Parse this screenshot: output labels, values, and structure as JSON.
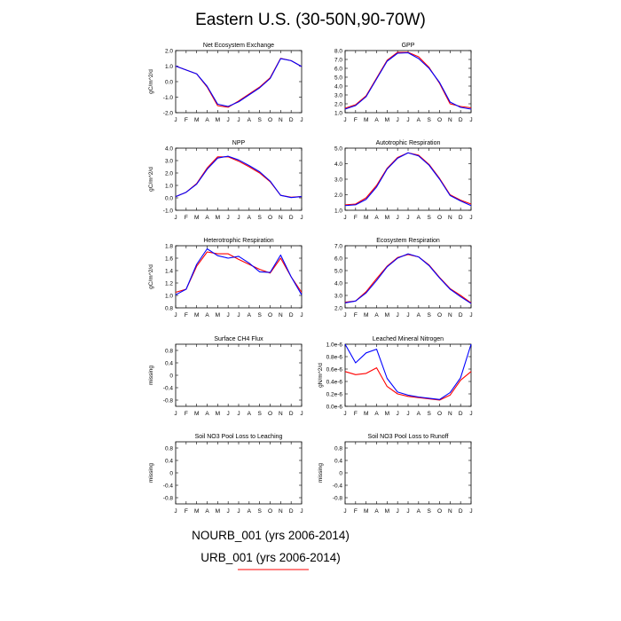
{
  "title": "Eastern U.S. (30-50N,90-70W)",
  "legend": [
    {
      "label": "NOURB_001 (yrs 2006-2014)",
      "color": "#0000ff"
    },
    {
      "label": "URB_001 (yrs 2006-2014)",
      "color": "#ff0000"
    }
  ],
  "chart_data": [
    {
      "type": "line",
      "title": "Net Ecosystem Exchange",
      "ylabel": "gC/m^2/d",
      "categories": [
        "J",
        "F",
        "M",
        "A",
        "M",
        "J",
        "J",
        "A",
        "S",
        "O",
        "N",
        "D",
        "J"
      ],
      "ylim": [
        -2.0,
        2.0
      ],
      "yticks": [
        "-2.0",
        "-1.0",
        "0.0",
        "1.0",
        "2.0"
      ],
      "ytick_values": [
        -2,
        -1,
        0,
        1,
        2
      ],
      "series": [
        {
          "color": "#0000ff",
          "values": [
            1.0,
            0.75,
            0.5,
            -0.3,
            -1.45,
            -1.6,
            -1.3,
            -0.85,
            -0.4,
            0.2,
            1.48,
            1.35,
            0.97
          ]
        },
        {
          "color": "#ff0000",
          "values": [
            1.0,
            0.75,
            0.5,
            -0.35,
            -1.55,
            -1.65,
            -1.25,
            -0.8,
            -0.35,
            0.25,
            1.5,
            1.35,
            0.97
          ]
        }
      ]
    },
    {
      "type": "line",
      "title": "GPP",
      "ylabel": "",
      "categories": [
        "J",
        "F",
        "M",
        "A",
        "M",
        "J",
        "J",
        "A",
        "S",
        "O",
        "N",
        "D",
        "J"
      ],
      "ylim": [
        1.0,
        8.0
      ],
      "yticks": [
        "1.0",
        "2.0",
        "3.0",
        "4.0",
        "5.0",
        "6.0",
        "7.0",
        "8.0"
      ],
      "ytick_values": [
        1,
        2,
        3,
        4,
        5,
        6,
        7,
        8
      ],
      "series": [
        {
          "color": "#0000ff",
          "values": [
            1.4,
            1.8,
            2.8,
            4.8,
            6.8,
            7.7,
            7.75,
            7.1,
            6.0,
            4.4,
            2.2,
            1.6,
            1.4
          ]
        },
        {
          "color": "#ff0000",
          "values": [
            1.5,
            1.9,
            2.9,
            4.9,
            6.9,
            7.8,
            7.8,
            7.3,
            6.1,
            4.3,
            2.0,
            1.7,
            1.55
          ]
        }
      ]
    },
    {
      "type": "line",
      "title": "NPP",
      "ylabel": "gC/m^2/d",
      "categories": [
        "J",
        "F",
        "M",
        "A",
        "M",
        "J",
        "J",
        "A",
        "S",
        "O",
        "N",
        "D",
        "J"
      ],
      "ylim": [
        -1.0,
        4.0
      ],
      "yticks": [
        "-1.0",
        "0.0",
        "1.0",
        "2.0",
        "3.0",
        "4.0"
      ],
      "ytick_values": [
        -1,
        0,
        1,
        2,
        3,
        4
      ],
      "series": [
        {
          "color": "#0000ff",
          "values": [
            0.1,
            0.45,
            1.1,
            2.3,
            3.2,
            3.35,
            3.05,
            2.6,
            2.1,
            1.35,
            0.2,
            0.02,
            0.1
          ]
        },
        {
          "color": "#ff0000",
          "values": [
            0.1,
            0.45,
            1.15,
            2.4,
            3.3,
            3.3,
            2.95,
            2.5,
            2.0,
            1.3,
            0.2,
            0.05,
            0.1
          ]
        }
      ]
    },
    {
      "type": "line",
      "title": "Autotrophic Respiration",
      "ylabel": "",
      "categories": [
        "J",
        "F",
        "M",
        "A",
        "M",
        "J",
        "J",
        "A",
        "S",
        "O",
        "N",
        "D",
        "J"
      ],
      "ylim": [
        1.0,
        5.0
      ],
      "yticks": [
        "1.0",
        "2.0",
        "3.0",
        "4.0",
        "5.0"
      ],
      "ytick_values": [
        1,
        2,
        3,
        4,
        5
      ],
      "series": [
        {
          "color": "#0000ff",
          "values": [
            1.3,
            1.35,
            1.7,
            2.5,
            3.65,
            4.35,
            4.7,
            4.5,
            3.9,
            3.0,
            1.95,
            1.6,
            1.3
          ]
        },
        {
          "color": "#ff0000",
          "values": [
            1.35,
            1.4,
            1.8,
            2.6,
            3.7,
            4.4,
            4.7,
            4.55,
            3.95,
            3.05,
            2.0,
            1.65,
            1.4
          ]
        }
      ]
    },
    {
      "type": "line",
      "title": "Heterotrophic Respiration",
      "ylabel": "gC/m^2/d",
      "categories": [
        "J",
        "F",
        "M",
        "A",
        "M",
        "J",
        "J",
        "A",
        "S",
        "O",
        "N",
        "D",
        "J"
      ],
      "ylim": [
        0.8,
        1.8
      ],
      "yticks": [
        "0.8",
        "1.0",
        "1.2",
        "1.4",
        "1.6",
        "1.8"
      ],
      "ytick_values": [
        0.8,
        1.0,
        1.2,
        1.4,
        1.6,
        1.8
      ],
      "series": [
        {
          "color": "#0000ff",
          "values": [
            1.01,
            1.1,
            1.5,
            1.75,
            1.64,
            1.6,
            1.63,
            1.52,
            1.38,
            1.37,
            1.65,
            1.3,
            1.01
          ]
        },
        {
          "color": "#ff0000",
          "values": [
            1.05,
            1.1,
            1.47,
            1.7,
            1.67,
            1.67,
            1.58,
            1.5,
            1.42,
            1.36,
            1.6,
            1.3,
            1.05
          ]
        }
      ]
    },
    {
      "type": "line",
      "title": "Ecosystem Respiration",
      "ylabel": "",
      "categories": [
        "J",
        "F",
        "M",
        "A",
        "M",
        "J",
        "J",
        "A",
        "S",
        "O",
        "N",
        "D",
        "J"
      ],
      "ylim": [
        2.0,
        7.0
      ],
      "yticks": [
        "2.0",
        "3.0",
        "4.0",
        "5.0",
        "6.0",
        "7.0"
      ],
      "ytick_values": [
        2,
        3,
        4,
        5,
        6,
        7
      ],
      "series": [
        {
          "color": "#0000ff",
          "values": [
            2.4,
            2.55,
            3.2,
            4.2,
            5.3,
            6.0,
            6.35,
            6.1,
            5.4,
            4.4,
            3.5,
            2.9,
            2.35
          ]
        },
        {
          "color": "#ff0000",
          "values": [
            2.45,
            2.55,
            3.3,
            4.35,
            5.35,
            6.05,
            6.3,
            6.1,
            5.45,
            4.45,
            3.55,
            3.0,
            2.4
          ]
        }
      ]
    },
    {
      "type": "line",
      "title": "Surface CH4 Flux",
      "ylabel": "missing",
      "categories": [
        "J",
        "F",
        "M",
        "A",
        "M",
        "J",
        "J",
        "A",
        "S",
        "O",
        "N",
        "D",
        "J"
      ],
      "ylim": [
        -1.0,
        1.0
      ],
      "yticks": [
        "-0.8",
        "-0.4",
        "0",
        "0.4",
        "0.8"
      ],
      "ytick_values": [
        -0.8,
        -0.4,
        0,
        0.4,
        0.8
      ],
      "series": []
    },
    {
      "type": "line",
      "title": "Leached Mineral Nitrogen",
      "ylabel": "gN/m^2/d",
      "categories": [
        "J",
        "F",
        "M",
        "A",
        "M",
        "J",
        "J",
        "A",
        "S",
        "O",
        "N",
        "D",
        "J"
      ],
      "ylim": [
        0.0,
        1e-06
      ],
      "yticks": [
        "0.0e-6",
        "0.2e-6",
        "0.4e-6",
        "0.6e-6",
        "0.8e-6",
        "1.0e-6"
      ],
      "ytick_values": [
        0,
        2e-07,
        4e-07,
        6e-07,
        8e-07,
        1e-06
      ],
      "series": [
        {
          "color": "#0000ff",
          "values": [
            1e-06,
            7e-07,
            8.6e-07,
            9.2e-07,
            4.5e-07,
            2.3e-07,
            1.8e-07,
            1.5e-07,
            1.3e-07,
            1.1e-07,
            2.2e-07,
            4.6e-07,
            1e-06
          ]
        },
        {
          "color": "#ff0000",
          "values": [
            5.6e-07,
            5.1e-07,
            5.3e-07,
            6.2e-07,
            3.2e-07,
            2e-07,
            1.6e-07,
            1.4e-07,
            1.2e-07,
            1e-07,
            1.8e-07,
            4.2e-07,
            5.6e-07
          ]
        }
      ]
    },
    {
      "type": "line",
      "title": "Soil NO3 Pool Loss to Leaching",
      "ylabel": "missing",
      "categories": [
        "J",
        "F",
        "M",
        "A",
        "M",
        "J",
        "J",
        "A",
        "S",
        "O",
        "N",
        "D",
        "J"
      ],
      "ylim": [
        -1.0,
        1.0
      ],
      "yticks": [
        "-0.8",
        "-0.4",
        "0",
        "0.4",
        "0.8"
      ],
      "ytick_values": [
        -0.8,
        -0.4,
        0,
        0.4,
        0.8
      ],
      "series": []
    },
    {
      "type": "line",
      "title": "Soil NO3 Pool Loss to Runoff",
      "ylabel": "missing",
      "categories": [
        "J",
        "F",
        "M",
        "A",
        "M",
        "J",
        "J",
        "A",
        "S",
        "O",
        "N",
        "D",
        "J"
      ],
      "ylim": [
        -1.0,
        1.0
      ],
      "yticks": [
        "-0.8",
        "-0.4",
        "0",
        "0.4",
        "0.8"
      ],
      "ytick_values": [
        -0.8,
        -0.4,
        0,
        0.4,
        0.8
      ],
      "series": []
    }
  ]
}
